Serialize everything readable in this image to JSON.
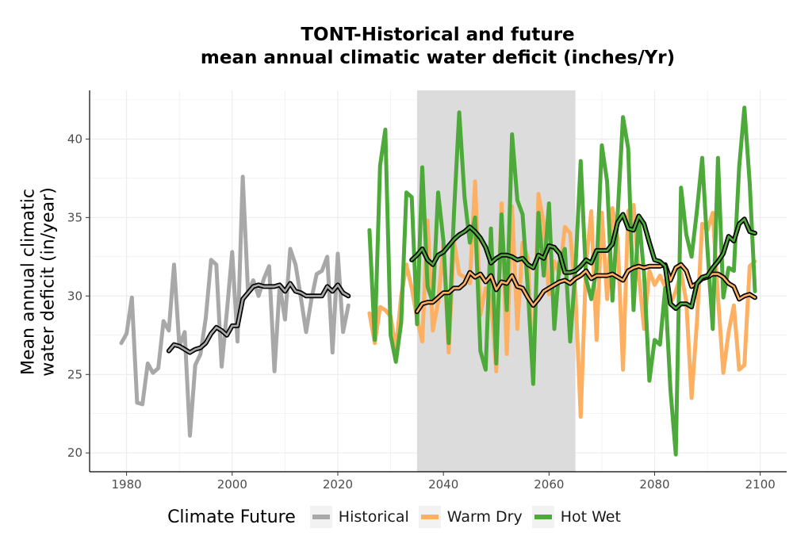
{
  "chart_data": {
    "type": "line",
    "title": "TONT-Historical and future",
    "subtitle": "mean annual climatic water deficit (inches/Yr)",
    "xlabel": "",
    "ylabel_line1": "Mean annual climatic",
    "ylabel_line2": "water deficit (in/year)",
    "xlim": [
      1973,
      2105
    ],
    "ylim": [
      18.8,
      43.1
    ],
    "x_ticks": [
      1980,
      2000,
      2020,
      2040,
      2060,
      2080,
      2100
    ],
    "y_ticks": [
      20,
      25,
      30,
      35,
      40
    ],
    "grid": true,
    "shaded_period": [
      2035,
      2065
    ],
    "legend_title": "Climate Future",
    "legend_position": "bottom",
    "series": [
      {
        "name": "Historical",
        "color": "#a8a8a8",
        "x": [
          1979,
          1980,
          1981,
          1982,
          1983,
          1984,
          1985,
          1986,
          1987,
          1988,
          1989,
          1990,
          1991,
          1992,
          1993,
          1994,
          1995,
          1996,
          1997,
          1998,
          1999,
          2000,
          2001,
          2002,
          2003,
          2004,
          2005,
          2006,
          2007,
          2008,
          2009,
          2010,
          2011,
          2012,
          2013,
          2014,
          2015,
          2016,
          2017,
          2018,
          2019,
          2020,
          2021,
          2022
        ],
        "values": [
          27.0,
          27.6,
          29.9,
          23.2,
          23.1,
          25.7,
          25.1,
          25.4,
          28.4,
          27.8,
          32.0,
          26.8,
          27.7,
          21.1,
          25.6,
          26.3,
          28.6,
          32.3,
          32.0,
          25.5,
          29.0,
          32.8,
          27.1,
          37.6,
          30.2,
          31.0,
          30.0,
          31.1,
          31.9,
          25.2,
          30.7,
          28.5,
          33.0,
          32.0,
          29.9,
          27.7,
          29.8,
          31.4,
          31.6,
          32.5,
          26.4,
          32.7,
          27.7,
          29.4
        ]
      },
      {
        "name": "Warm Dry",
        "color": "#fdb062",
        "x": [
          2026,
          2027,
          2028,
          2029,
          2030,
          2031,
          2032,
          2033,
          2034,
          2035,
          2036,
          2037,
          2038,
          2039,
          2040,
          2041,
          2042,
          2043,
          2044,
          2045,
          2046,
          2047,
          2048,
          2049,
          2050,
          2051,
          2052,
          2053,
          2054,
          2055,
          2056,
          2057,
          2058,
          2059,
          2060,
          2061,
          2062,
          2063,
          2064,
          2065,
          2066,
          2067,
          2068,
          2069,
          2070,
          2071,
          2072,
          2073,
          2074,
          2075,
          2076,
          2077,
          2078,
          2079,
          2080,
          2081,
          2082,
          2083,
          2084,
          2085,
          2086,
          2087,
          2088,
          2089,
          2090,
          2091,
          2092,
          2093,
          2094,
          2095,
          2096,
          2097,
          2098,
          2099
        ],
        "values": [
          28.9,
          27.0,
          29.3,
          29.1,
          28.7,
          26.6,
          30.0,
          32.0,
          30.5,
          28.6,
          27.1,
          34.8,
          27.8,
          29.6,
          33.3,
          26.4,
          33.5,
          31.4,
          31.2,
          30.8,
          37.3,
          28.8,
          30.5,
          29.9,
          25.2,
          35.9,
          26.3,
          35.7,
          27.9,
          33.4,
          32.4,
          24.4,
          36.5,
          34.6,
          30.1,
          32.2,
          31.4,
          34.4,
          34.0,
          30.2,
          22.3,
          32.0,
          35.4,
          27.2,
          35.3,
          29.8,
          35.6,
          33.6,
          25.3,
          35.4,
          35.8,
          31.4,
          27.9,
          31.6,
          30.7,
          31.3,
          30.6,
          29.5,
          30.3,
          31.5,
          29.6,
          23.5,
          28.3,
          34.6,
          34.2,
          35.3,
          29.9,
          25.1,
          27.7,
          29.4,
          25.3,
          25.6,
          31.9,
          32.2
        ]
      },
      {
        "name": "Hot Wet",
        "color": "#4daa3a",
        "x": [
          2026,
          2027,
          2028,
          2029,
          2030,
          2031,
          2032,
          2033,
          2034,
          2035,
          2036,
          2037,
          2038,
          2039,
          2040,
          2041,
          2042,
          2043,
          2044,
          2045,
          2046,
          2047,
          2048,
          2049,
          2050,
          2051,
          2052,
          2053,
          2054,
          2055,
          2056,
          2057,
          2058,
          2059,
          2060,
          2061,
          2062,
          2063,
          2064,
          2065,
          2066,
          2067,
          2068,
          2069,
          2070,
          2071,
          2072,
          2073,
          2074,
          2075,
          2076,
          2077,
          2078,
          2079,
          2080,
          2081,
          2082,
          2083,
          2084,
          2085,
          2086,
          2087,
          2088,
          2089,
          2090,
          2091,
          2092,
          2093,
          2094,
          2095,
          2096,
          2097,
          2098,
          2099
        ],
        "values": [
          34.2,
          27.2,
          38.3,
          40.6,
          27.5,
          25.8,
          28.3,
          36.6,
          36.3,
          28.2,
          38.2,
          30.6,
          29.6,
          36.6,
          33.5,
          27.0,
          35.3,
          41.7,
          36.3,
          33.4,
          35.0,
          26.5,
          25.3,
          34.3,
          25.7,
          35.2,
          29.1,
          40.3,
          36.1,
          35.2,
          30.4,
          24.4,
          35.3,
          31.3,
          35.9,
          27.9,
          32.2,
          33.0,
          27.1,
          31.7,
          38.6,
          31.1,
          29.8,
          31.7,
          39.6,
          37.3,
          29.7,
          35.2,
          41.4,
          39.4,
          29.1,
          35.1,
          31.4,
          24.6,
          27.2,
          26.9,
          30.5,
          24.0,
          19.9,
          36.9,
          33.9,
          32.5,
          35.4,
          38.8,
          33.0,
          27.9,
          38.8,
          29.9,
          31.8,
          31.6,
          38.2,
          42.0,
          37.2,
          30.3
        ]
      },
      {
        "name": "Historical rolling mean",
        "color": "#a8a8a8",
        "x": [
          1988,
          1989,
          1990,
          1991,
          1992,
          1993,
          1994,
          1995,
          1996,
          1997,
          1998,
          1999,
          2000,
          2001,
          2002,
          2003,
          2004,
          2005,
          2006,
          2007,
          2008,
          2009,
          2010,
          2011,
          2012,
          2013,
          2014,
          2015,
          2016,
          2017,
          2018,
          2019,
          2020,
          2021,
          2022
        ],
        "values": [
          26.5,
          26.9,
          26.8,
          26.6,
          26.4,
          26.6,
          26.7,
          27.0,
          27.6,
          28.0,
          27.8,
          27.5,
          28.1,
          28.1,
          29.8,
          30.2,
          30.6,
          30.7,
          30.6,
          30.6,
          30.6,
          30.7,
          30.3,
          30.8,
          30.3,
          30.2,
          30.0,
          30.0,
          30.0,
          30.0,
          30.6,
          30.3,
          30.7,
          30.2,
          30.0
        ]
      },
      {
        "name": "Warm Dry rolling mean",
        "color": "#fdb062",
        "x": [
          2035,
          2036,
          2037,
          2038,
          2039,
          2040,
          2041,
          2042,
          2043,
          2044,
          2045,
          2046,
          2047,
          2048,
          2049,
          2050,
          2051,
          2052,
          2053,
          2054,
          2055,
          2056,
          2057,
          2058,
          2059,
          2060,
          2061,
          2062,
          2063,
          2064,
          2065,
          2066,
          2067,
          2068,
          2069,
          2070,
          2071,
          2072,
          2073,
          2074,
          2075,
          2076,
          2077,
          2078,
          2079,
          2080,
          2081,
          2082,
          2083,
          2084,
          2085,
          2086,
          2087,
          2088,
          2089,
          2090,
          2091,
          2092,
          2093,
          2094,
          2095,
          2096,
          2097,
          2098,
          2099
        ],
        "values": [
          29.0,
          29.5,
          29.6,
          29.6,
          29.9,
          30.2,
          30.2,
          30.5,
          30.5,
          30.8,
          31.5,
          31.2,
          31.4,
          30.9,
          31.3,
          30.4,
          30.9,
          30.8,
          31.3,
          30.6,
          30.5,
          29.9,
          29.4,
          29.8,
          30.3,
          30.5,
          30.7,
          30.9,
          31.0,
          30.8,
          31.1,
          31.3,
          31.6,
          31.1,
          31.3,
          31.3,
          31.3,
          31.4,
          31.2,
          31.0,
          31.6,
          31.8,
          31.9,
          31.8,
          31.9,
          31.9,
          31.9,
          32.0,
          31.0,
          31.8,
          32.0,
          31.6,
          30.6,
          30.8,
          31.1,
          31.2,
          31.4,
          31.4,
          31.2,
          30.8,
          30.6,
          29.8,
          30.0,
          30.1,
          29.9
        ]
      },
      {
        "name": "Hot Wet rolling mean",
        "color": "#4daa3a",
        "x": [
          2034,
          2035,
          2036,
          2037,
          2038,
          2039,
          2040,
          2041,
          2042,
          2043,
          2044,
          2045,
          2046,
          2047,
          2048,
          2049,
          2050,
          2051,
          2052,
          2053,
          2054,
          2055,
          2056,
          2057,
          2058,
          2059,
          2060,
          2061,
          2062,
          2063,
          2064,
          2065,
          2066,
          2067,
          2068,
          2069,
          2070,
          2071,
          2072,
          2073,
          2074,
          2075,
          2076,
          2077,
          2078,
          2079,
          2080,
          2081,
          2082,
          2083,
          2084,
          2085,
          2086,
          2087,
          2088,
          2089,
          2090,
          2091,
          2092,
          2093,
          2094,
          2095,
          2096,
          2097,
          2098,
          2099
        ],
        "values": [
          32.3,
          32.6,
          33.0,
          32.3,
          32.0,
          32.6,
          32.8,
          33.2,
          33.6,
          33.9,
          34.1,
          34.4,
          34.1,
          33.7,
          33.1,
          32.1,
          32.4,
          32.6,
          32.6,
          32.5,
          32.3,
          32.4,
          32.0,
          31.8,
          32.6,
          32.4,
          33.2,
          33.1,
          32.7,
          31.5,
          31.5,
          31.6,
          31.9,
          32.3,
          32.1,
          32.9,
          32.9,
          32.9,
          33.3,
          34.7,
          35.2,
          34.3,
          34.2,
          35.1,
          34.6,
          33.4,
          32.3,
          32.2,
          31.9,
          29.5,
          29.2,
          29.5,
          29.5,
          29.3,
          30.8,
          31.2,
          31.3,
          31.8,
          32.2,
          32.7,
          33.8,
          33.5,
          34.6,
          34.9,
          34.1,
          34.0
        ]
      }
    ]
  }
}
